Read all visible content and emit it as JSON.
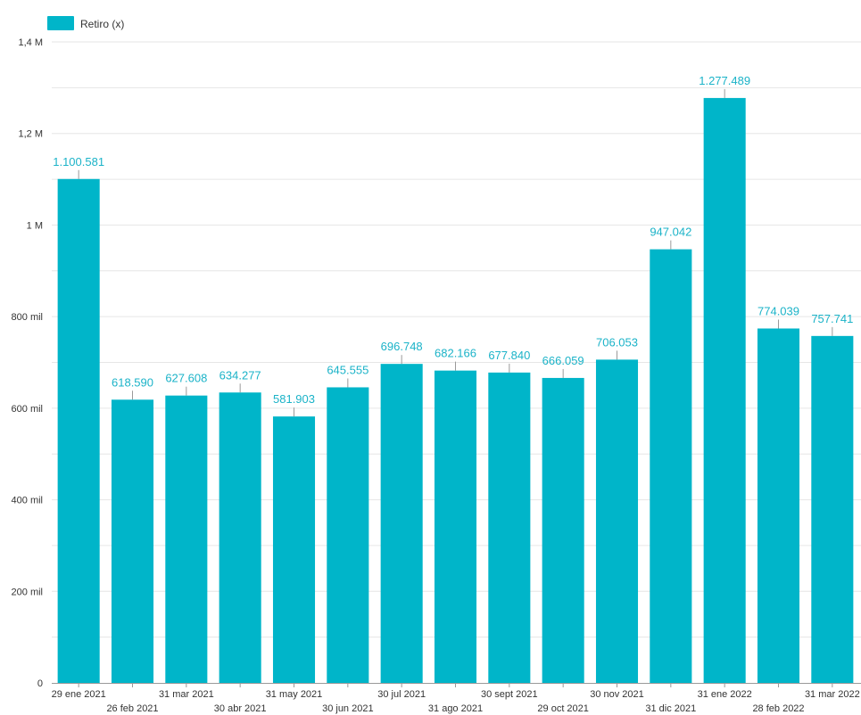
{
  "chart_data": {
    "type": "bar",
    "legend": {
      "position": "top-left",
      "entries": [
        "Retiro (x)"
      ]
    },
    "series": [
      {
        "name": "Retiro (x)",
        "color": "#00b5c9",
        "values": [
          1100581,
          618590,
          627608,
          634277,
          581903,
          645555,
          696748,
          682166,
          677840,
          666059,
          706053,
          947042,
          1277489,
          774039,
          757741
        ]
      }
    ],
    "categories": [
      "29 ene 2021",
      "26 feb 2021",
      "31 mar 2021",
      "30 abr 2021",
      "31 may 2021",
      "30 jun 2021",
      "30 jul 2021",
      "31 ago 2021",
      "30 sept 2021",
      "29 oct 2021",
      "30 nov 2021",
      "31 dic 2021",
      "31 ene 2022",
      "28 feb 2022",
      "31 mar 2022"
    ],
    "data_labels": [
      "1.100.581",
      "618.590",
      "627.608",
      "634.277",
      "581.903",
      "645.555",
      "696.748",
      "682.166",
      "677.840",
      "666.059",
      "706.053",
      "947.042",
      "1.277.489",
      "774.039",
      "757.741"
    ],
    "y_ticks": [
      {
        "value": 0,
        "label": "0"
      },
      {
        "value": 200000,
        "label": "200 mil"
      },
      {
        "value": 400000,
        "label": "400 mil"
      },
      {
        "value": 600000,
        "label": "600 mil"
      },
      {
        "value": 800000,
        "label": "800 mil"
      },
      {
        "value": 1000000,
        "label": "1 M"
      },
      {
        "value": 1200000,
        "label": "1,2 M"
      },
      {
        "value": 1400000,
        "label": "1,4 M"
      }
    ],
    "ylim": [
      0,
      1400000
    ],
    "grid": true,
    "colors": {
      "bar": "#00b5c9",
      "data_label": "#1bb3c8",
      "grid": "#e6e6e6",
      "axis": "#999999"
    }
  }
}
